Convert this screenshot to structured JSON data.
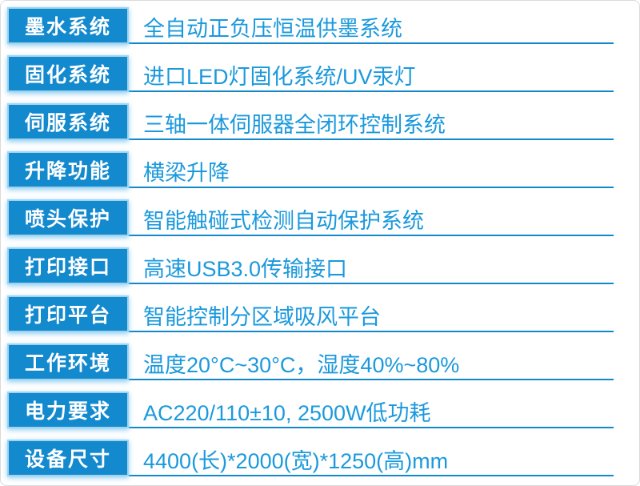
{
  "title": "printer-specification-table",
  "colors": {
    "label_background": "#1389ce",
    "label_glow_border": "#9ed4ef",
    "label_text": "#ffffff",
    "value_text": "#1b99dc",
    "row_line": "#1287cb",
    "page_border": "#dadada"
  },
  "rows": [
    {
      "label": "墨水系统",
      "value": "全自动正负压恒温供墨系统"
    },
    {
      "label": "固化系统",
      "value": "进口LED灯固化系统/UV汞灯"
    },
    {
      "label": "伺服系统",
      "value": "三轴一体伺服器全闭环控制系统"
    },
    {
      "label": "升降功能",
      "value": "横梁升降"
    },
    {
      "label": "喷头保护",
      "value": "智能触碰式检测自动保护系统"
    },
    {
      "label": "打印接口",
      "value": "高速USB3.0传输接口"
    },
    {
      "label": "打印平台",
      "value": "智能控制分区域吸风平台"
    },
    {
      "label": "工作环境",
      "value": "温度20°C~30°C，湿度40%~80%"
    },
    {
      "label": "电力要求",
      "value": "AC220/110±10, 2500W低功耗"
    },
    {
      "label": "设备尺寸",
      "value": "4400(长)*2000(宽)*1250(高)mm"
    }
  ]
}
